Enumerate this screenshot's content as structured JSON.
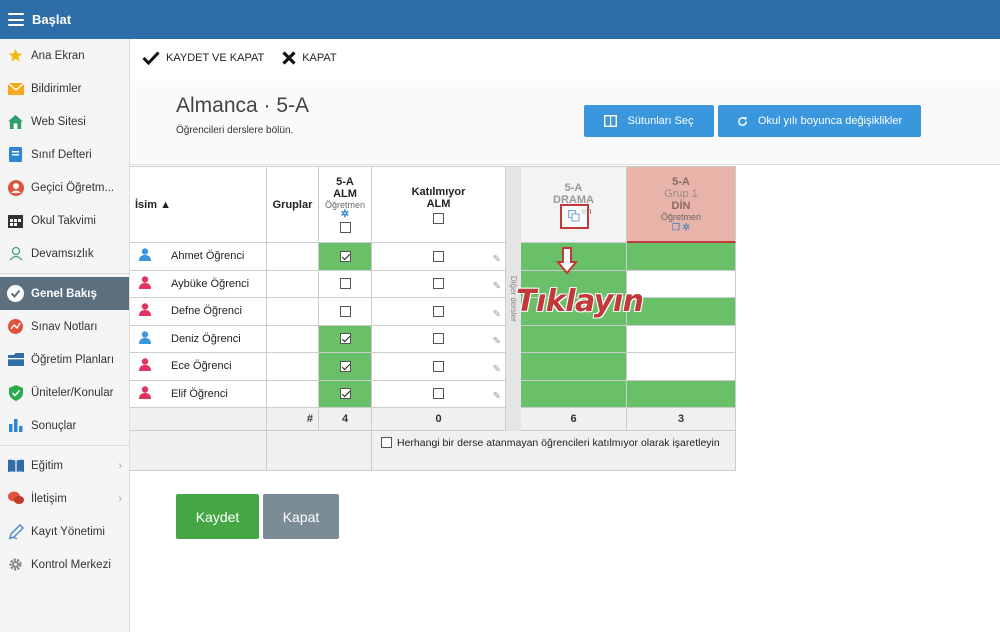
{
  "topbar": {
    "title": "Başlat"
  },
  "sidebar": {
    "items": [
      {
        "label": "Ana Ekran",
        "icon": "star-icon"
      },
      {
        "label": "Bildirimler",
        "icon": "envelope-icon"
      },
      {
        "label": "Web Sitesi",
        "icon": "home-icon"
      },
      {
        "label": "Sınıf Defteri",
        "icon": "notebook-icon"
      },
      {
        "label": "Geçici Öğretm...",
        "icon": "person-icon"
      },
      {
        "label": "Okul Takvimi",
        "icon": "calendar-icon"
      },
      {
        "label": "Devamsızlık",
        "icon": "user-outline-icon"
      },
      {
        "label": "Genel Bakış",
        "icon": "check-circle-icon"
      },
      {
        "label": "Sınav Notları",
        "icon": "chart-circle-icon"
      },
      {
        "label": "Öğretim Planları",
        "icon": "folder-icon"
      },
      {
        "label": "Üniteler/Konular",
        "icon": "shield-icon"
      },
      {
        "label": "Sonuçlar",
        "icon": "bar-chart-icon"
      },
      {
        "label": "Eğitim",
        "icon": "book-icon"
      },
      {
        "label": "İletişim",
        "icon": "chat-icon"
      },
      {
        "label": "Kayıt Yönetimi",
        "icon": "pen-icon"
      },
      {
        "label": "Kontrol Merkezi",
        "icon": "gear-icon"
      }
    ]
  },
  "toolbar": {
    "save_close": "KAYDET VE KAPAT",
    "close": "KAPAT"
  },
  "header": {
    "title": "Almanca · 5-A",
    "subtitle": "Öğrencileri derslere bölün.",
    "btn_columns": "Sütunları Seç",
    "btn_changes": "Okul yılı boyunca değişiklikler"
  },
  "table": {
    "col_name": "İsim ▲",
    "col_groups": "Gruplar",
    "col_alm": {
      "line1": "5-A",
      "line2": "ALM",
      "line3": "Öğretmen"
    },
    "col_nonpart": {
      "line1": "Katılmıyor",
      "line2": "ALM"
    },
    "other_subjects": "Diğer dersler",
    "col_drama": {
      "line1": "5-A",
      "line2": "DRAMA",
      "line3": "en"
    },
    "col_din": {
      "line1": "5-A",
      "line2": "Grup 1",
      "line3": "DİN",
      "line4": "Öğretmen"
    },
    "students": [
      {
        "name": "Ahmet Öğrenci",
        "gender": "male",
        "alm": true,
        "nonpart": false,
        "drama": true,
        "din": true
      },
      {
        "name": "Aybüke Öğrenci",
        "gender": "female",
        "alm": false,
        "nonpart": false,
        "drama": true,
        "din": false
      },
      {
        "name": "Defne Öğrenci",
        "gender": "female",
        "alm": false,
        "nonpart": false,
        "drama": true,
        "din": true
      },
      {
        "name": "Deniz Öğrenci",
        "gender": "male",
        "alm": true,
        "nonpart": false,
        "drama": true,
        "din": false
      },
      {
        "name": "Ece Öğrenci",
        "gender": "female",
        "alm": true,
        "nonpart": false,
        "drama": true,
        "din": false
      },
      {
        "name": "Elif Öğrenci",
        "gender": "female",
        "alm": true,
        "nonpart": false,
        "drama": true,
        "din": true
      }
    ],
    "footer": {
      "hash": "#",
      "alm": "4",
      "nonpart": "0",
      "drama": "6",
      "din": "3"
    },
    "unassigned_note": "Herhangi bir derse atanmayan öğrencileri katılmıyor olarak işaretleyin"
  },
  "annotation": "Tıklayın",
  "buttons": {
    "save": "Kaydet",
    "close": "Kapat"
  },
  "colors": {
    "topbar": "#2d6da8",
    "green": "#6abf69",
    "blue": "#3a97dd",
    "pink": "#e8b3a8",
    "callout": "#c0393b"
  }
}
